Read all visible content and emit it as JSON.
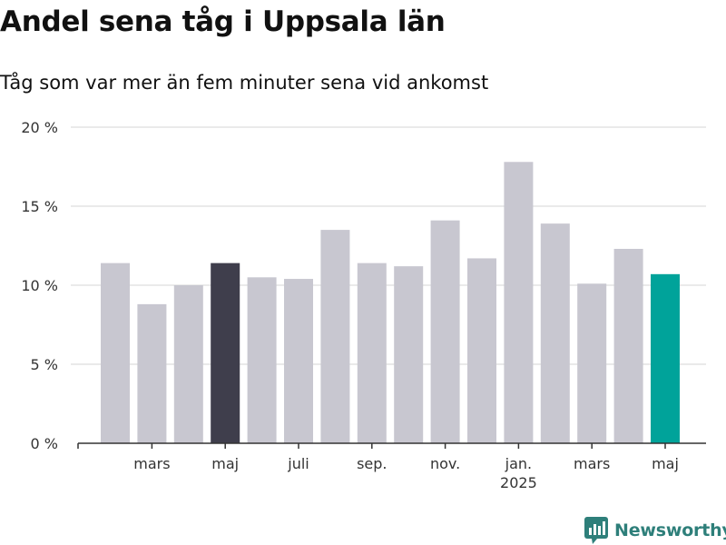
{
  "title": "Andel sena tåg i Uppsala län",
  "subtitle": "Tåg som var mer än fem minuter sena vid ankomst",
  "brand": {
    "name": "Newsworthy",
    "icon": "newsworthy-logo-icon"
  },
  "chart_data": {
    "type": "bar",
    "title": "Andel sena tåg i Uppsala län",
    "subtitle": "Tåg som var mer än fem minuter sena vid ankomst",
    "xlabel": "",
    "ylabel": "",
    "ylim": [
      0,
      20
    ],
    "y_ticks": [
      {
        "value": 0,
        "label": "0 %"
      },
      {
        "value": 5,
        "label": "5 %"
      },
      {
        "value": 10,
        "label": "10 %"
      },
      {
        "value": 15,
        "label": "15 %"
      },
      {
        "value": 20,
        "label": "20 %"
      }
    ],
    "grid": true,
    "x": [
      "2024-02",
      "2024-03",
      "2024-04",
      "2024-05",
      "2024-06",
      "2024-07",
      "2024-08",
      "2024-09",
      "2024-10",
      "2024-11",
      "2024-12",
      "2025-01",
      "2025-02",
      "2025-03",
      "2025-04",
      "2025-05"
    ],
    "values": [
      11.4,
      8.8,
      10.0,
      11.4,
      10.5,
      10.4,
      13.5,
      11.4,
      11.2,
      14.1,
      11.7,
      17.8,
      13.9,
      10.1,
      12.3,
      10.7
    ],
    "x_tick_labels": [
      {
        "x": "2024-03",
        "label": "mars"
      },
      {
        "x": "2024-05",
        "label": "maj"
      },
      {
        "x": "2024-07",
        "label": "juli"
      },
      {
        "x": "2024-09",
        "label": "sep."
      },
      {
        "x": "2024-11",
        "label": "nov."
      },
      {
        "x": "2025-01",
        "label": "jan.",
        "sublabel": "2025"
      },
      {
        "x": "2025-03",
        "label": "mars"
      },
      {
        "x": "2025-05",
        "label": "maj"
      }
    ],
    "colors": {
      "default": "#c8c7d0",
      "highlight_previous_year": "#3f3e4c",
      "highlight_latest": "#00a39a"
    },
    "highlights": [
      {
        "x": "2024-05",
        "color": "#3f3e4c"
      },
      {
        "x": "2025-05",
        "color": "#00a39a"
      }
    ],
    "axis_color": "#333333",
    "grid_color": "#dddddd"
  }
}
